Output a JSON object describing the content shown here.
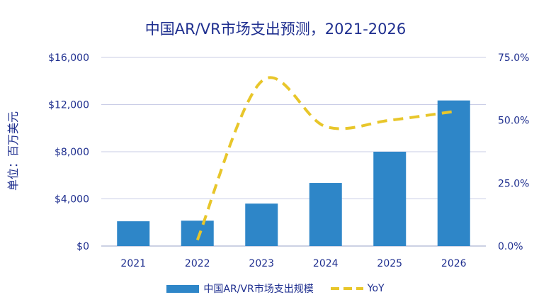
{
  "chart_data": {
    "type": "bar",
    "title": "中国AR/VR市场支出预测，2021-2026",
    "ylabel": "单位：百万美元",
    "categories": [
      "2021",
      "2022",
      "2023",
      "2024",
      "2025",
      "2026"
    ],
    "series": [
      {
        "name": "中国AR/VR市场支出规模",
        "type": "bar",
        "axis": "left",
        "values": [
          2100,
          2150,
          3600,
          5350,
          8000,
          12350
        ],
        "color": "#2e86c8"
      },
      {
        "name": "YoY",
        "type": "line",
        "style": "dashed",
        "axis": "right",
        "values": [
          null,
          2.4,
          65.5,
          47.5,
          50.0,
          53.5
        ],
        "color": "#e8c62a"
      }
    ],
    "ylim": [
      0,
      16000
    ],
    "yticks": [
      "$0",
      "$4,000",
      "$8,000",
      "$12,000",
      "$16,000"
    ],
    "y2lim": [
      0,
      75
    ],
    "y2ticks": [
      "0.0%",
      "25.0%",
      "50.0%",
      "75.0%"
    ],
    "grid": true,
    "legend_position": "bottom"
  }
}
